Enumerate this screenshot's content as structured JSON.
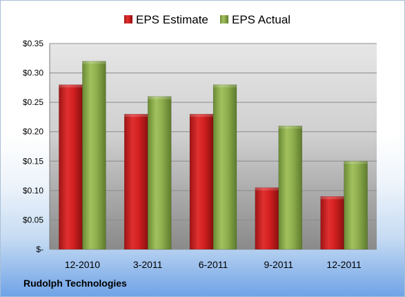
{
  "company": "Rudolph Technologies",
  "chart_data": {
    "type": "bar",
    "categories": [
      "12-2010",
      "3-2011",
      "6-2011",
      "9-2011",
      "12-2011"
    ],
    "series": [
      {
        "name": "EPS Estimate",
        "values": [
          0.28,
          0.23,
          0.23,
          0.105,
          0.09
        ],
        "color": "#d42020"
      },
      {
        "name": "EPS Actual",
        "values": [
          0.32,
          0.26,
          0.28,
          0.21,
          0.15
        ],
        "color": "#8fae4e"
      }
    ],
    "ylim": [
      0,
      0.35
    ],
    "yticks": [
      0,
      0.05,
      0.1,
      0.15,
      0.2,
      0.25,
      0.3,
      0.35
    ],
    "ytick_labels": [
      "$-",
      "$0.05",
      "$0.10",
      "$0.15",
      "$0.20",
      "$0.25",
      "$0.30",
      "$0.35"
    ],
    "grid": true,
    "legend_position": "top"
  }
}
